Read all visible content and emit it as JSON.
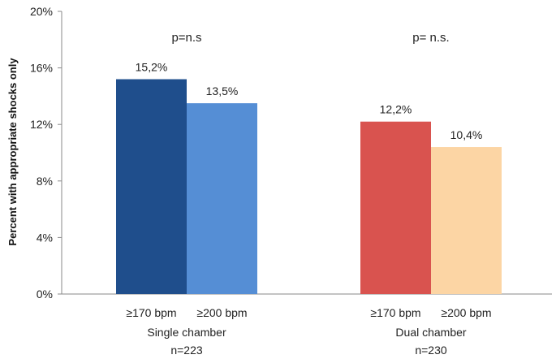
{
  "chart_data": {
    "type": "bar",
    "title": "",
    "xlabel": "",
    "ylabel": "Percent with appropriate shocks only",
    "ylim": [
      0,
      20
    ],
    "yticks": [
      0,
      4,
      8,
      12,
      16,
      20
    ],
    "ytick_labels": [
      "0%",
      "4%",
      "8%",
      "12%",
      "16%",
      "20%"
    ],
    "grid": false,
    "groups": [
      {
        "label": "Single chamber",
        "n_label": "n=223",
        "annotation": "p=n.s",
        "bars": [
          {
            "category": "≥170 bpm",
            "value": 15.2,
            "label": "15,2%",
            "color": "#1F4E8C"
          },
          {
            "category": "≥200 bpm",
            "value": 13.5,
            "label": "13,5%",
            "color": "#558ED5"
          }
        ]
      },
      {
        "label": "Dual chamber",
        "n_label": "n=230",
        "annotation": "p= n.s.",
        "bars": [
          {
            "category": "≥170 bpm",
            "value": 12.2,
            "label": "12,2%",
            "color": "#D9534F"
          },
          {
            "category": "≥200 bpm",
            "value": 10.4,
            "label": "10,4%",
            "color": "#FCD5A4"
          }
        ]
      }
    ]
  }
}
